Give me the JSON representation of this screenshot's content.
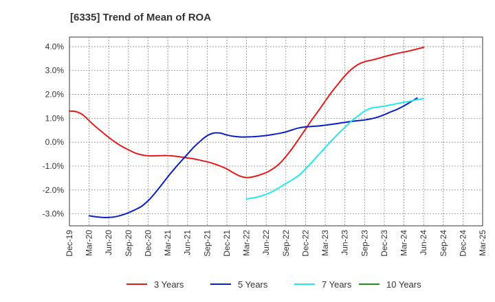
{
  "chart_data": {
    "type": "line",
    "title": "[6335]  Trend of Mean of ROA",
    "xlabel": "",
    "ylabel": "",
    "x_ticks": [
      "Dec-19",
      "Mar-20",
      "Jun-20",
      "Sep-20",
      "Dec-20",
      "Mar-21",
      "Jun-21",
      "Sep-21",
      "Dec-21",
      "Mar-22",
      "Jun-22",
      "Sep-22",
      "Dec-22",
      "Mar-23",
      "Jun-23",
      "Sep-23",
      "Dec-23",
      "Mar-24",
      "Jun-24",
      "Sep-24",
      "Dec-24",
      "Mar-25"
    ],
    "y_ticks": [
      "4.0%",
      "3.0%",
      "2.0%",
      "1.0%",
      "0.0%",
      "-1.0%",
      "-2.0%",
      "-3.0%"
    ],
    "ylim": [
      -3.5,
      4.4
    ],
    "grid": true,
    "legend_position": "bottom",
    "series": [
      {
        "name": "3 Years",
        "color": "#e31a1c",
        "points": [
          [
            0,
            1.3
          ],
          [
            0.33,
            1.28
          ],
          [
            0.67,
            1.15
          ],
          [
            1,
            0.9
          ],
          [
            1.33,
            0.65
          ],
          [
            1.67,
            0.42
          ],
          [
            2,
            0.2
          ],
          [
            2.33,
            0.0
          ],
          [
            2.67,
            -0.18
          ],
          [
            3,
            -0.32
          ],
          [
            3.33,
            -0.45
          ],
          [
            3.67,
            -0.53
          ],
          [
            4,
            -0.57
          ],
          [
            4.33,
            -0.57
          ],
          [
            4.67,
            -0.56
          ],
          [
            5,
            -0.56
          ],
          [
            5.33,
            -0.58
          ],
          [
            5.67,
            -0.62
          ],
          [
            6,
            -0.66
          ],
          [
            6.33,
            -0.7
          ],
          [
            6.67,
            -0.76
          ],
          [
            7,
            -0.82
          ],
          [
            7.33,
            -0.9
          ],
          [
            7.67,
            -1.0
          ],
          [
            8,
            -1.12
          ],
          [
            8.33,
            -1.28
          ],
          [
            8.67,
            -1.42
          ],
          [
            9,
            -1.48
          ],
          [
            9.33,
            -1.45
          ],
          [
            9.67,
            -1.37
          ],
          [
            10,
            -1.27
          ],
          [
            10.33,
            -1.12
          ],
          [
            10.67,
            -0.9
          ],
          [
            11,
            -0.6
          ],
          [
            11.33,
            -0.25
          ],
          [
            11.67,
            0.15
          ],
          [
            12,
            0.55
          ],
          [
            12.33,
            0.95
          ],
          [
            12.67,
            1.33
          ],
          [
            13,
            1.72
          ],
          [
            13.33,
            2.1
          ],
          [
            13.67,
            2.45
          ],
          [
            14,
            2.78
          ],
          [
            14.33,
            3.05
          ],
          [
            14.67,
            3.25
          ],
          [
            15,
            3.37
          ],
          [
            15.33,
            3.43
          ],
          [
            15.67,
            3.5
          ],
          [
            16,
            3.58
          ],
          [
            16.33,
            3.65
          ],
          [
            16.67,
            3.72
          ],
          [
            17,
            3.77
          ],
          [
            17.33,
            3.83
          ],
          [
            17.67,
            3.9
          ],
          [
            18,
            3.97
          ]
        ]
      },
      {
        "name": "5 Years",
        "color": "#0a1ec8",
        "points": [
          [
            1,
            -3.08
          ],
          [
            1.33,
            -3.12
          ],
          [
            1.67,
            -3.15
          ],
          [
            2,
            -3.15
          ],
          [
            2.33,
            -3.12
          ],
          [
            2.67,
            -3.05
          ],
          [
            3,
            -2.95
          ],
          [
            3.33,
            -2.83
          ],
          [
            3.67,
            -2.68
          ],
          [
            4,
            -2.45
          ],
          [
            4.33,
            -2.15
          ],
          [
            4.67,
            -1.8
          ],
          [
            5,
            -1.45
          ],
          [
            5.33,
            -1.12
          ],
          [
            5.67,
            -0.8
          ],
          [
            6,
            -0.5
          ],
          [
            6.33,
            -0.2
          ],
          [
            6.67,
            0.06
          ],
          [
            7,
            0.27
          ],
          [
            7.33,
            0.38
          ],
          [
            7.67,
            0.38
          ],
          [
            8,
            0.3
          ],
          [
            8.33,
            0.25
          ],
          [
            8.67,
            0.22
          ],
          [
            9,
            0.22
          ],
          [
            9.33,
            0.23
          ],
          [
            9.67,
            0.25
          ],
          [
            10,
            0.28
          ],
          [
            10.33,
            0.32
          ],
          [
            10.67,
            0.37
          ],
          [
            11,
            0.43
          ],
          [
            11.33,
            0.52
          ],
          [
            11.67,
            0.6
          ],
          [
            12,
            0.64
          ],
          [
            12.33,
            0.66
          ],
          [
            12.67,
            0.68
          ],
          [
            13,
            0.71
          ],
          [
            13.33,
            0.75
          ],
          [
            13.67,
            0.79
          ],
          [
            14,
            0.83
          ],
          [
            14.33,
            0.87
          ],
          [
            14.67,
            0.9
          ],
          [
            15,
            0.93
          ],
          [
            15.33,
            0.98
          ],
          [
            15.67,
            1.05
          ],
          [
            16,
            1.15
          ],
          [
            16.33,
            1.27
          ],
          [
            16.67,
            1.38
          ],
          [
            17,
            1.52
          ],
          [
            17.33,
            1.68
          ],
          [
            17.67,
            1.85
          ]
        ]
      },
      {
        "name": "7 Years",
        "color": "#22eaea",
        "points": [
          [
            9,
            -2.38
          ],
          [
            9.33,
            -2.33
          ],
          [
            9.67,
            -2.27
          ],
          [
            10,
            -2.18
          ],
          [
            10.33,
            -2.06
          ],
          [
            10.67,
            -1.9
          ],
          [
            11,
            -1.73
          ],
          [
            11.33,
            -1.57
          ],
          [
            11.67,
            -1.38
          ],
          [
            12,
            -1.12
          ],
          [
            12.33,
            -0.83
          ],
          [
            12.67,
            -0.52
          ],
          [
            13,
            -0.22
          ],
          [
            13.33,
            0.07
          ],
          [
            13.67,
            0.36
          ],
          [
            14,
            0.62
          ],
          [
            14.33,
            0.88
          ],
          [
            14.67,
            1.1
          ],
          [
            15,
            1.3
          ],
          [
            15.33,
            1.42
          ],
          [
            15.67,
            1.47
          ],
          [
            16,
            1.51
          ],
          [
            16.33,
            1.56
          ],
          [
            16.67,
            1.62
          ],
          [
            17,
            1.67
          ],
          [
            17.33,
            1.72
          ],
          [
            17.67,
            1.78
          ],
          [
            18,
            1.83
          ]
        ]
      },
      {
        "name": "10 Years",
        "color": "#228b22",
        "points": []
      }
    ]
  }
}
